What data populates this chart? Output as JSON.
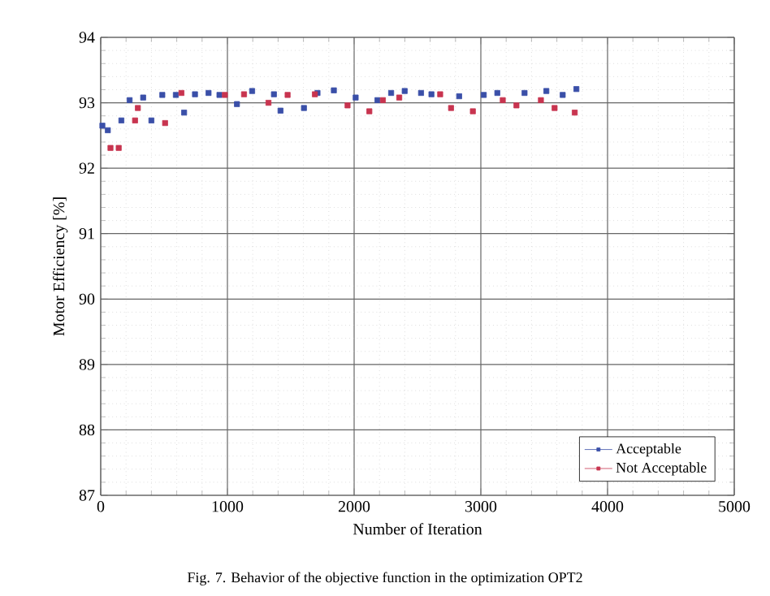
{
  "chart_data": {
    "type": "scatter",
    "xlabel": "Number of Iteration",
    "ylabel": "Motor Efficiency [%]",
    "annotations": [
      "Fig. 7. Behavior of the objective function in the optimization OPT2"
    ],
    "xlim": [
      0,
      5000
    ],
    "ylim": [
      87,
      94
    ],
    "xticks": [
      0,
      1000,
      2000,
      3000,
      4000,
      5000
    ],
    "yticks": [
      87,
      88,
      89,
      90,
      91,
      92,
      93,
      94
    ],
    "grid": true,
    "legend": "bottom right",
    "marker": "square",
    "series": [
      {
        "name": "Acceptable",
        "color": "#3a4fa8",
        "x": [
          13,
          56,
          163,
          228,
          335,
          400,
          486,
          593,
          658,
          744,
          851,
          937,
          1075,
          1195,
          1367,
          1419,
          1604,
          1711,
          1840,
          2012,
          2184,
          2292,
          2399,
          2528,
          2610,
          2829,
          3023,
          3130,
          3345,
          3517,
          3646,
          3754
        ],
        "values": [
          92.65,
          92.58,
          92.73,
          93.04,
          93.08,
          92.73,
          93.12,
          93.12,
          92.85,
          93.13,
          93.15,
          93.12,
          92.98,
          93.18,
          93.13,
          92.88,
          92.92,
          93.15,
          93.19,
          93.08,
          93.04,
          93.15,
          93.18,
          93.15,
          93.13,
          93.1,
          93.12,
          93.15,
          93.15,
          93.18,
          93.12,
          93.21
        ]
      },
      {
        "name": "Not Acceptable",
        "color": "#c8344f",
        "x": [
          77,
          142,
          271,
          293,
          508,
          637,
          980,
          1131,
          1324,
          1475,
          1690,
          1948,
          2120,
          2227,
          2356,
          2679,
          2765,
          2937,
          3173,
          3281,
          3474,
          3582,
          3741
        ],
        "values": [
          92.31,
          92.31,
          92.73,
          92.92,
          92.69,
          93.15,
          93.12,
          93.13,
          93.0,
          93.12,
          93.13,
          92.96,
          92.87,
          93.04,
          93.08,
          93.13,
          92.92,
          92.87,
          93.04,
          92.96,
          93.04,
          92.92,
          92.85
        ]
      }
    ]
  }
}
